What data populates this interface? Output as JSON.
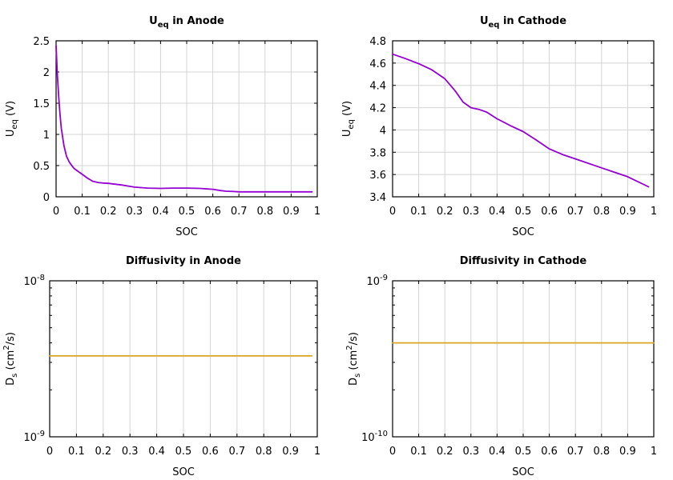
{
  "chart_data": [
    {
      "type": "line",
      "title_main": "U",
      "title_sub": "eq",
      "title_rest": " in Anode",
      "xlabel": "SOC",
      "ylabel_main": "U",
      "ylabel_sub": "eq",
      "ylabel_rest": " (V)",
      "xlim": [
        0,
        1
      ],
      "ylim": [
        0,
        2.5
      ],
      "xticks": [
        "0",
        "0.1",
        "0.2",
        "0.3",
        "0.4",
        "0.5",
        "0.6",
        "0.7",
        "0.8",
        "0.9",
        "1"
      ],
      "yticks": [
        "0",
        "0.5",
        "1",
        "1.5",
        "2",
        "2.5"
      ],
      "ytick_values": [
        0,
        0.5,
        1,
        1.5,
        2,
        2.5
      ],
      "grid": true,
      "color": "#9400d3",
      "series": [
        {
          "x": [
            0,
            0.005,
            0.01,
            0.015,
            0.02,
            0.03,
            0.04,
            0.05,
            0.06,
            0.07,
            0.08,
            0.1,
            0.12,
            0.14,
            0.16,
            0.18,
            0.2,
            0.25,
            0.3,
            0.35,
            0.4,
            0.45,
            0.5,
            0.55,
            0.6,
            0.63,
            0.65,
            0.68,
            0.7,
            0.75,
            0.8,
            0.85,
            0.9,
            0.95,
            0.98
          ],
          "y": [
            2.42,
            1.95,
            1.6,
            1.32,
            1.1,
            0.82,
            0.65,
            0.56,
            0.5,
            0.45,
            0.42,
            0.36,
            0.3,
            0.25,
            0.23,
            0.22,
            0.215,
            0.19,
            0.155,
            0.14,
            0.135,
            0.14,
            0.14,
            0.135,
            0.12,
            0.1,
            0.09,
            0.085,
            0.08,
            0.08,
            0.08,
            0.08,
            0.08,
            0.08,
            0.08
          ]
        }
      ]
    },
    {
      "type": "line",
      "title_main": "U",
      "title_sub": "eq",
      "title_rest": " in Cathode",
      "xlabel": "SOC",
      "ylabel_main": "U",
      "ylabel_sub": "eq",
      "ylabel_rest": " (V)",
      "xlim": [
        0,
        1
      ],
      "ylim": [
        3.4,
        4.8
      ],
      "xticks": [
        "0",
        "0.1",
        "0.2",
        "0.3",
        "0.4",
        "0.5",
        "0.6",
        "0.7",
        "0.8",
        "0.9",
        "1"
      ],
      "yticks": [
        "3.4",
        "3.6",
        "3.8",
        "4",
        "4.2",
        "4.4",
        "4.6",
        "4.8"
      ],
      "ytick_values": [
        3.4,
        3.6,
        3.8,
        4.0,
        4.2,
        4.4,
        4.6,
        4.8
      ],
      "grid": true,
      "color": "#9400d3",
      "series": [
        {
          "x": [
            0,
            0.05,
            0.1,
            0.15,
            0.2,
            0.24,
            0.27,
            0.3,
            0.33,
            0.36,
            0.4,
            0.45,
            0.5,
            0.55,
            0.6,
            0.65,
            0.7,
            0.8,
            0.9,
            0.98
          ],
          "y": [
            4.68,
            4.64,
            4.595,
            4.54,
            4.46,
            4.35,
            4.25,
            4.2,
            4.185,
            4.16,
            4.1,
            4.04,
            3.985,
            3.91,
            3.83,
            3.78,
            3.74,
            3.66,
            3.58,
            3.49
          ]
        }
      ]
    },
    {
      "type": "line",
      "title": "Diffusivity in Anode",
      "xlabel": "SOC",
      "ylabel_main": "D",
      "ylabel_sub": "s",
      "ylabel_mid": " (cm",
      "ylabel_sup": "2",
      "ylabel_rest": "/s)",
      "xlim": [
        0,
        1
      ],
      "ylim": [
        1e-09,
        1e-08
      ],
      "yscale": "log",
      "xticks": [
        "0",
        "0.1",
        "0.2",
        "0.3",
        "0.4",
        "0.5",
        "0.6",
        "0.7",
        "0.8",
        "0.9",
        "1"
      ],
      "ytick_base": "10",
      "ytick_top_exp": "-8",
      "ytick_bottom_exp": "-9",
      "grid": true,
      "color": "#daa520",
      "series": [
        {
          "x": [
            0,
            0.98
          ],
          "y": [
            3.3e-09,
            3.3e-09
          ]
        }
      ]
    },
    {
      "type": "line",
      "title": "Diffusivity in Cathode",
      "xlabel": "SOC",
      "ylabel_main": "D",
      "ylabel_sub": "s",
      "ylabel_mid": " (cm",
      "ylabel_sup": "2",
      "ylabel_rest": "/s)",
      "xlim": [
        0,
        1
      ],
      "ylim": [
        1e-10,
        1e-09
      ],
      "yscale": "log",
      "xticks": [
        "0",
        "0.1",
        "0.2",
        "0.3",
        "0.4",
        "0.5",
        "0.6",
        "0.7",
        "0.8",
        "0.9",
        "1"
      ],
      "ytick_base": "10",
      "ytick_top_exp": "-9",
      "ytick_bottom_exp": "-10",
      "grid": true,
      "color": "#daa520",
      "series": [
        {
          "x": [
            0,
            1
          ],
          "y": [
            4e-10,
            4e-10
          ]
        }
      ]
    }
  ]
}
